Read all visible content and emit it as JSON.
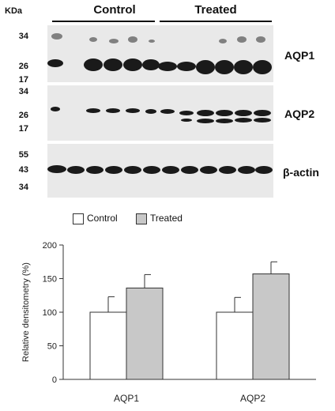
{
  "blot": {
    "unit": "KDa",
    "groups": [
      "Control",
      "Treated"
    ],
    "panels": [
      {
        "protein": "AQP1",
        "markers": [
          "34",
          "26",
          "17"
        ]
      },
      {
        "protein": "AQP2",
        "markers": [
          "34",
          "26",
          "17"
        ]
      },
      {
        "protein": "β-actin",
        "markers": [
          "55",
          "43",
          "34"
        ]
      }
    ]
  },
  "legend": [
    {
      "label": "Control",
      "color": "#ffffff"
    },
    {
      "label": "Treated",
      "color": "#c8c8c8"
    }
  ],
  "chart_data": {
    "type": "bar",
    "title": "",
    "xlabel": "",
    "ylabel": "Relative densitometry (%)",
    "ylim": [
      0,
      200
    ],
    "yticks": [
      0,
      50,
      100,
      150,
      200
    ],
    "categories": [
      "AQP1",
      "AQP2"
    ],
    "series": [
      {
        "name": "Control",
        "values": [
          100,
          100
        ],
        "errors": [
          23,
          22
        ],
        "color": "#ffffff"
      },
      {
        "name": "Treated",
        "values": [
          136,
          157
        ],
        "errors": [
          20,
          18
        ],
        "color": "#c8c8c8"
      }
    ],
    "grid": false,
    "legend_position": "top-left"
  }
}
